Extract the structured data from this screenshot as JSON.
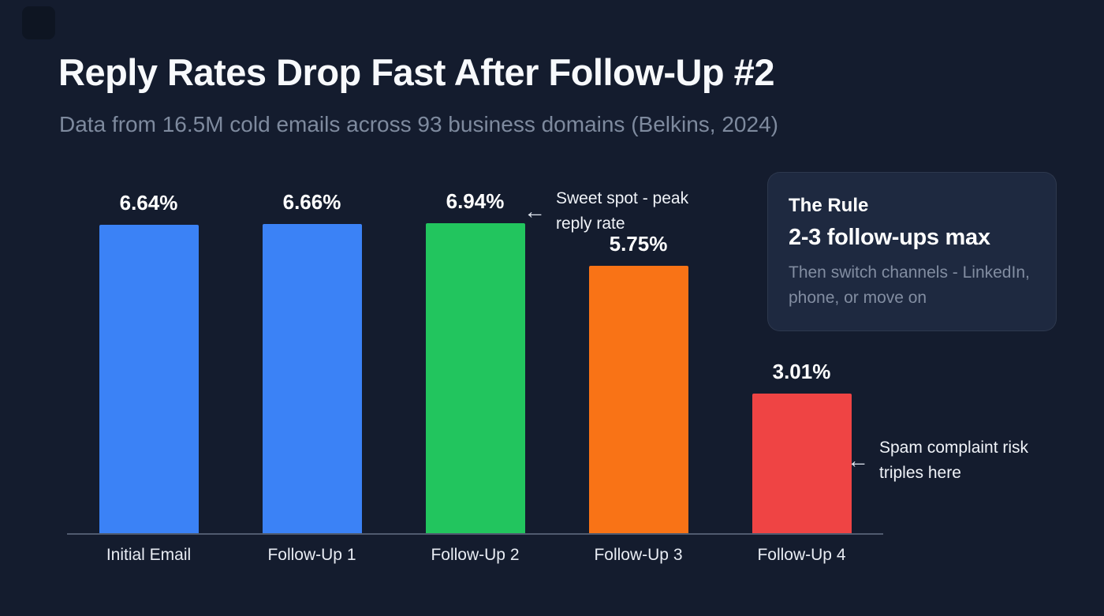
{
  "chart_data": {
    "type": "bar",
    "title": "Reply Rates Drop Fast After Follow-Up #2",
    "subtitle": "Data from 16.5M cold emails across 93 business domains (Belkins, 2024)",
    "categories": [
      "Initial Email",
      "Follow-Up 1",
      "Follow-Up 2",
      "Follow-Up 3",
      "Follow-Up 4"
    ],
    "values": [
      6.64,
      6.66,
      6.94,
      5.75,
      3.01
    ],
    "value_labels": [
      "6.64%",
      "6.66%",
      "6.94%",
      "5.75%",
      "3.01%"
    ],
    "bar_colors": [
      "#3b82f6",
      "#3b82f6",
      "#22c55e",
      "#f97316",
      "#ef4444"
    ],
    "xlabel": "",
    "ylabel": "",
    "ylim": [
      0,
      7.4
    ],
    "grid": false,
    "legend": false,
    "annotations": [
      {
        "arrow": "←",
        "text": "Sweet spot - peak reply rate",
        "target": "Follow-Up 2"
      },
      {
        "arrow": "←",
        "text": "Spam complaint risk triples here",
        "target": "Follow-Up 4"
      }
    ]
  },
  "card": {
    "title": "The Rule",
    "headline": "2-3 follow-ups max",
    "body": "Then switch channels - LinkedIn, phone, or move on"
  },
  "colors": {
    "background": "#141c2e",
    "title_text": "#f7f9fc",
    "subtitle_text": "#7e8a9e",
    "axis_line": "#505b6f",
    "card_background": "#1e2940",
    "bar_blue": "#3b82f6",
    "bar_green": "#22c55e",
    "bar_orange": "#f97316",
    "bar_red": "#ef4444"
  }
}
